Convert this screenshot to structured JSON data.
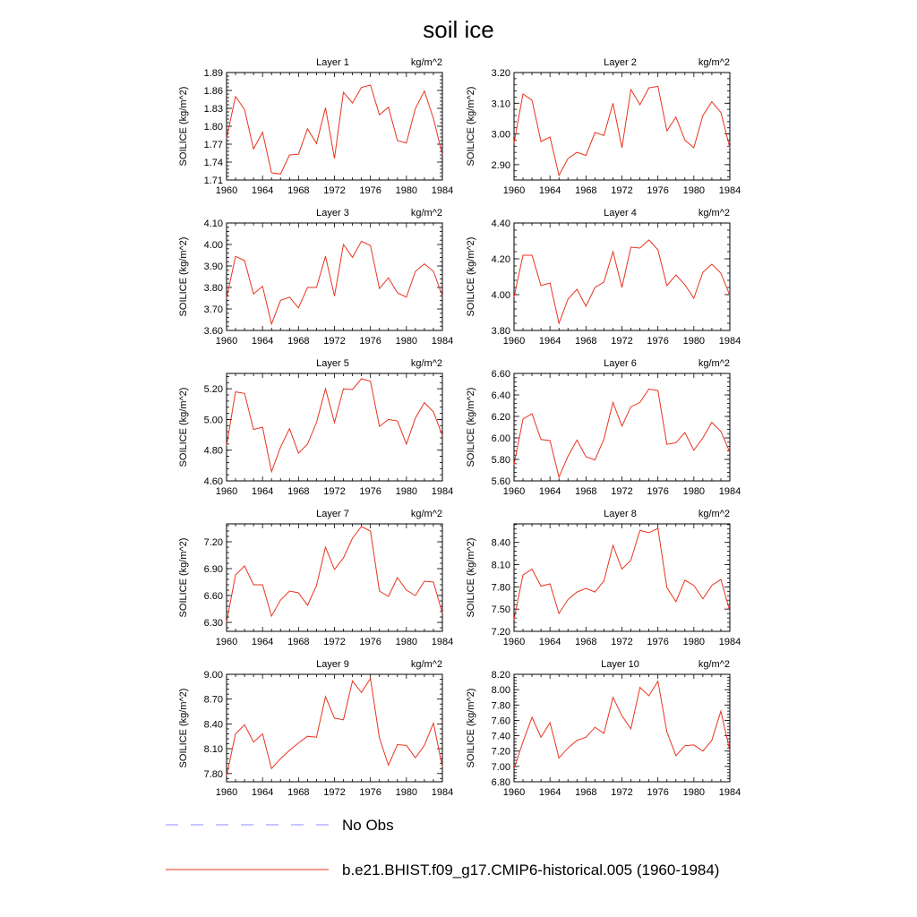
{
  "title": "soil ice",
  "legend": [
    {
      "label": "No Obs",
      "color": "#8c8cff",
      "dash": true
    },
    {
      "label": "b.e21.BHIST.f09_g17.CMIP6-historical.005 (1960-1984)",
      "color": "#e8341e",
      "dash": false
    }
  ],
  "chart_data": [
    {
      "type": "line",
      "title": "Layer 1",
      "units": "kg/m^2",
      "ylabel": "SOILICE  (kg/m^2)",
      "xlim": [
        1960,
        1984
      ],
      "ylim": [
        1.71,
        1.89
      ],
      "xticks": [
        "1960",
        "1964",
        "1968",
        "1972",
        "1976",
        "1980",
        "1984"
      ],
      "yticks": [
        "1.71",
        "1.74",
        "1.77",
        "1.80",
        "1.83",
        "1.86",
        "1.89"
      ],
      "x": [
        1960,
        1961,
        1962,
        1963,
        1964,
        1965,
        1966,
        1967,
        1968,
        1969,
        1970,
        1971,
        1972,
        1973,
        1974,
        1975,
        1976,
        1977,
        1978,
        1979,
        1980,
        1981,
        1982,
        1983,
        1984
      ],
      "series": [
        {
          "values": [
            1.78,
            1.85,
            1.828,
            1.762,
            1.79,
            1.722,
            1.72,
            1.752,
            1.753,
            1.796,
            1.771,
            1.831,
            1.746,
            1.857,
            1.839,
            1.865,
            1.869,
            1.819,
            1.832,
            1.776,
            1.772,
            1.83,
            1.859,
            1.813,
            1.752
          ]
        }
      ]
    },
    {
      "type": "line",
      "title": "Layer 2",
      "units": "kg/m^2",
      "ylabel": "SOILICE  (kg/m^2)",
      "xlim": [
        1960,
        1984
      ],
      "ylim": [
        2.85,
        3.2
      ],
      "xticks": [
        "1960",
        "1964",
        "1968",
        "1972",
        "1976",
        "1980",
        "1984"
      ],
      "yticks": [
        "2.90",
        "3.00",
        "3.10",
        "3.20"
      ],
      "x": [
        1960,
        1961,
        1962,
        1963,
        1964,
        1965,
        1966,
        1967,
        1968,
        1969,
        1970,
        1971,
        1972,
        1973,
        1974,
        1975,
        1976,
        1977,
        1978,
        1979,
        1980,
        1981,
        1982,
        1983,
        1984
      ],
      "series": [
        {
          "values": [
            2.97,
            3.13,
            3.11,
            2.975,
            2.99,
            2.865,
            2.92,
            2.94,
            2.93,
            3.005,
            2.995,
            3.1,
            2.955,
            3.145,
            3.095,
            3.15,
            3.155,
            3.01,
            3.055,
            2.98,
            2.955,
            3.06,
            3.105,
            3.07,
            2.955
          ]
        }
      ]
    },
    {
      "type": "line",
      "title": "Layer 3",
      "units": "kg/m^2",
      "ylabel": "SOILICE  (kg/m^2)",
      "xlim": [
        1960,
        1984
      ],
      "ylim": [
        3.6,
        4.1
      ],
      "xticks": [
        "1960",
        "1964",
        "1968",
        "1972",
        "1976",
        "1980",
        "1984"
      ],
      "yticks": [
        "3.60",
        "3.70",
        "3.80",
        "3.90",
        "4.00",
        "4.10"
      ],
      "x": [
        1960,
        1961,
        1962,
        1963,
        1964,
        1965,
        1966,
        1967,
        1968,
        1969,
        1970,
        1971,
        1972,
        1973,
        1974,
        1975,
        1976,
        1977,
        1978,
        1979,
        1980,
        1981,
        1982,
        1983,
        1984
      ],
      "series": [
        {
          "values": [
            3.75,
            3.945,
            3.925,
            3.77,
            3.805,
            3.63,
            3.74,
            3.755,
            3.705,
            3.8,
            3.8,
            3.945,
            3.76,
            4.0,
            3.94,
            4.015,
            3.995,
            3.795,
            3.845,
            3.775,
            3.755,
            3.875,
            3.91,
            3.875,
            3.76
          ]
        }
      ]
    },
    {
      "type": "line",
      "title": "Layer 4",
      "units": "kg/m^2",
      "ylabel": "SOILICE  (kg/m^2)",
      "xlim": [
        1960,
        1984
      ],
      "ylim": [
        3.8,
        4.4
      ],
      "xticks": [
        "1960",
        "1964",
        "1968",
        "1972",
        "1976",
        "1980",
        "1984"
      ],
      "yticks": [
        "3.80",
        "4.00",
        "4.20",
        "4.40"
      ],
      "x": [
        1960,
        1961,
        1962,
        1963,
        1964,
        1965,
        1966,
        1967,
        1968,
        1969,
        1970,
        1971,
        1972,
        1973,
        1974,
        1975,
        1976,
        1977,
        1978,
        1979,
        1980,
        1981,
        1982,
        1983,
        1984
      ],
      "series": [
        {
          "values": [
            3.985,
            4.22,
            4.22,
            4.05,
            4.065,
            3.84,
            3.975,
            4.03,
            3.935,
            4.04,
            4.07,
            4.24,
            4.04,
            4.265,
            4.26,
            4.305,
            4.25,
            4.05,
            4.11,
            4.055,
            3.98,
            4.125,
            4.17,
            4.12,
            3.995
          ]
        }
      ]
    },
    {
      "type": "line",
      "title": "Layer 5",
      "units": "kg/m^2",
      "ylabel": "SOILICE  (kg/m^2)",
      "xlim": [
        1960,
        1984
      ],
      "ylim": [
        4.6,
        5.3
      ],
      "xticks": [
        "1960",
        "1964",
        "1968",
        "1972",
        "1976",
        "1980",
        "1984"
      ],
      "yticks": [
        "4.60",
        "4.80",
        "5.00",
        "5.20"
      ],
      "x": [
        1960,
        1961,
        1962,
        1963,
        1964,
        1965,
        1966,
        1967,
        1968,
        1969,
        1970,
        1971,
        1972,
        1973,
        1974,
        1975,
        1976,
        1977,
        1978,
        1979,
        1980,
        1981,
        1982,
        1983,
        1984
      ],
      "series": [
        {
          "values": [
            4.83,
            5.18,
            5.17,
            4.935,
            4.95,
            4.66,
            4.82,
            4.94,
            4.78,
            4.84,
            4.98,
            5.2,
            4.98,
            5.2,
            5.195,
            5.265,
            5.25,
            4.955,
            5.0,
            4.99,
            4.84,
            5.01,
            5.11,
            5.05,
            4.895
          ]
        }
      ]
    },
    {
      "type": "line",
      "title": "Layer 6",
      "units": "kg/m^2",
      "ylabel": "SOILICE  (kg/m^2)",
      "xlim": [
        1960,
        1984
      ],
      "ylim": [
        5.6,
        6.6
      ],
      "xticks": [
        "1960",
        "1964",
        "1968",
        "1972",
        "1976",
        "1980",
        "1984"
      ],
      "yticks": [
        "5.60",
        "5.80",
        "6.00",
        "6.20",
        "6.40",
        "6.60"
      ],
      "x": [
        1960,
        1961,
        1962,
        1963,
        1964,
        1965,
        1966,
        1967,
        1968,
        1969,
        1970,
        1971,
        1972,
        1973,
        1974,
        1975,
        1976,
        1977,
        1978,
        1979,
        1980,
        1981,
        1982,
        1983,
        1984
      ],
      "series": [
        {
          "values": [
            5.75,
            6.175,
            6.225,
            5.985,
            5.975,
            5.635,
            5.83,
            5.98,
            5.825,
            5.795,
            5.99,
            6.33,
            6.11,
            6.29,
            6.33,
            6.455,
            6.44,
            5.94,
            5.955,
            6.05,
            5.885,
            6.0,
            6.145,
            6.06,
            5.865
          ]
        }
      ]
    },
    {
      "type": "line",
      "title": "Layer 7",
      "units": "kg/m^2",
      "ylabel": "SOILICE  (kg/m^2)",
      "xlim": [
        1960,
        1984
      ],
      "ylim": [
        6.2,
        7.4
      ],
      "xticks": [
        "1960",
        "1964",
        "1968",
        "1972",
        "1976",
        "1980",
        "1984"
      ],
      "yticks": [
        "6.30",
        "6.60",
        "6.90",
        "7.20"
      ],
      "x": [
        1960,
        1961,
        1962,
        1963,
        1964,
        1965,
        1966,
        1967,
        1968,
        1969,
        1970,
        1971,
        1972,
        1973,
        1974,
        1975,
        1976,
        1977,
        1978,
        1979,
        1980,
        1981,
        1982,
        1983,
        1984
      ],
      "series": [
        {
          "values": [
            6.3,
            6.83,
            6.93,
            6.72,
            6.72,
            6.37,
            6.55,
            6.65,
            6.63,
            6.49,
            6.71,
            7.14,
            6.89,
            7.02,
            7.24,
            7.37,
            7.32,
            6.65,
            6.59,
            6.8,
            6.66,
            6.6,
            6.76,
            6.75,
            6.4
          ]
        }
      ]
    },
    {
      "type": "line",
      "title": "Layer 8",
      "units": "kg/m^2",
      "ylabel": "SOILICE  (kg/m^2)",
      "xlim": [
        1960,
        1984
      ],
      "ylim": [
        7.2,
        8.65
      ],
      "xticks": [
        "1960",
        "1964",
        "1968",
        "1972",
        "1976",
        "1980",
        "1984"
      ],
      "yticks": [
        "7.20",
        "7.50",
        "7.80",
        "8.10",
        "8.40"
      ],
      "x": [
        1960,
        1961,
        1962,
        1963,
        1964,
        1965,
        1966,
        1967,
        1968,
        1969,
        1970,
        1971,
        1972,
        1973,
        1974,
        1975,
        1976,
        1977,
        1978,
        1979,
        1980,
        1981,
        1982,
        1983,
        1984
      ],
      "series": [
        {
          "values": [
            7.36,
            7.96,
            8.04,
            7.81,
            7.84,
            7.44,
            7.63,
            7.73,
            7.78,
            7.73,
            7.88,
            8.36,
            8.04,
            8.16,
            8.56,
            8.53,
            8.59,
            7.79,
            7.6,
            7.89,
            7.82,
            7.64,
            7.82,
            7.9,
            7.47
          ]
        }
      ]
    },
    {
      "type": "line",
      "title": "Layer 9",
      "units": "kg/m^2",
      "ylabel": "SOILICE  (kg/m^2)",
      "xlim": [
        1960,
        1984
      ],
      "ylim": [
        7.7,
        9.0
      ],
      "xticks": [
        "1960",
        "1964",
        "1968",
        "1972",
        "1976",
        "1980",
        "1984"
      ],
      "yticks": [
        "7.80",
        "8.10",
        "8.40",
        "8.70",
        "9.00"
      ],
      "x": [
        1960,
        1961,
        1962,
        1963,
        1964,
        1965,
        1966,
        1967,
        1968,
        1969,
        1970,
        1971,
        1972,
        1973,
        1974,
        1975,
        1976,
        1977,
        1978,
        1979,
        1980,
        1981,
        1982,
        1983,
        1984
      ],
      "series": [
        {
          "values": [
            7.77,
            8.28,
            8.39,
            8.18,
            8.28,
            7.86,
            7.98,
            8.08,
            8.17,
            8.25,
            8.24,
            8.73,
            8.47,
            8.45,
            8.92,
            8.78,
            8.95,
            8.23,
            7.9,
            8.15,
            8.14,
            7.99,
            8.14,
            8.41,
            7.88
          ]
        }
      ]
    },
    {
      "type": "line",
      "title": "Layer 10",
      "units": "kg/m^2",
      "ylabel": "SOILICE  (kg/m^2)",
      "xlim": [
        1960,
        1984
      ],
      "ylim": [
        6.8,
        8.2
      ],
      "xticks": [
        "1960",
        "1964",
        "1968",
        "1972",
        "1976",
        "1980",
        "1984"
      ],
      "yticks": [
        "6.80",
        "7.00",
        "7.20",
        "7.40",
        "7.60",
        "7.80",
        "8.00",
        "8.20"
      ],
      "x": [
        1960,
        1961,
        1962,
        1963,
        1964,
        1965,
        1966,
        1967,
        1968,
        1969,
        1970,
        1971,
        1972,
        1973,
        1974,
        1975,
        1976,
        1977,
        1978,
        1979,
        1980,
        1981,
        1982,
        1983,
        1984
      ],
      "series": [
        {
          "values": [
            6.97,
            7.32,
            7.64,
            7.38,
            7.57,
            7.11,
            7.24,
            7.34,
            7.38,
            7.51,
            7.43,
            7.9,
            7.66,
            7.49,
            8.03,
            7.92,
            8.11,
            7.45,
            7.14,
            7.27,
            7.28,
            7.2,
            7.34,
            7.72,
            7.2
          ]
        }
      ]
    }
  ]
}
